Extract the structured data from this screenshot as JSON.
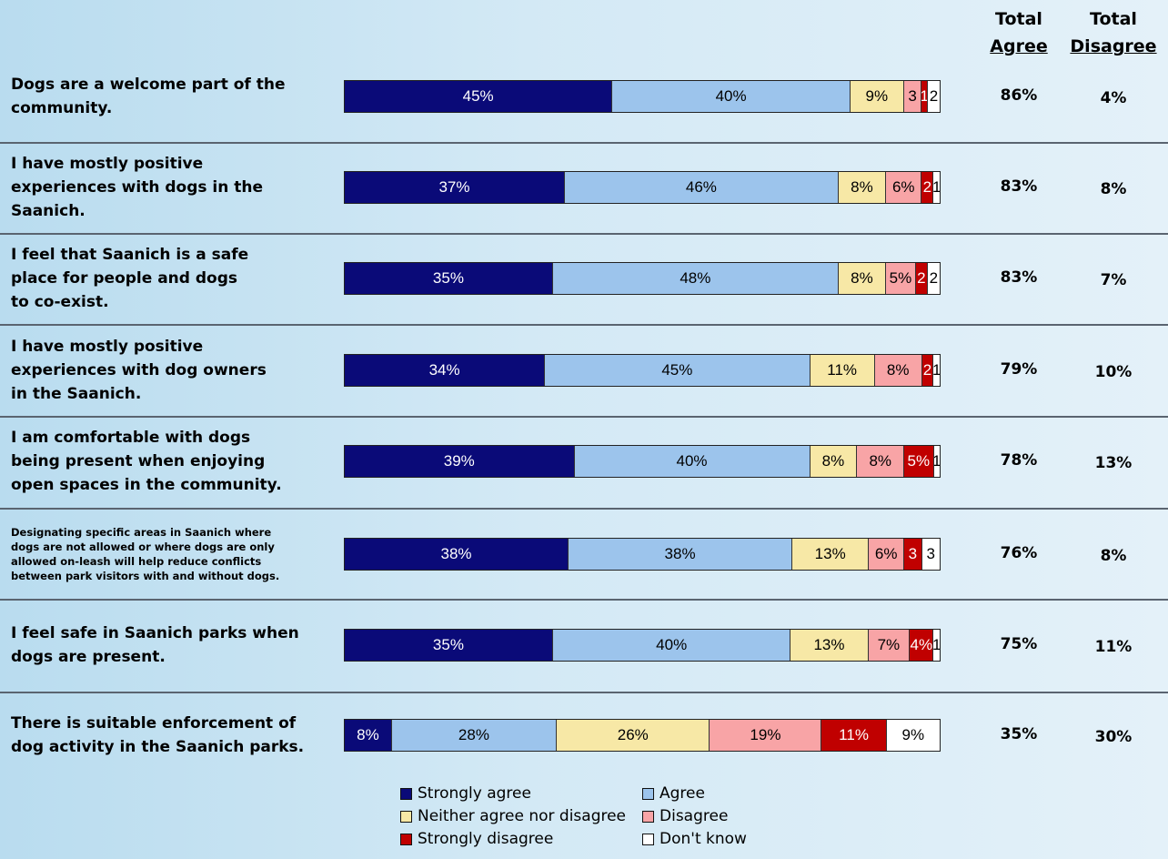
{
  "headers": {
    "total_agree": [
      "Total",
      "Agree"
    ],
    "total_disagree": [
      "Total",
      "Disagree"
    ]
  },
  "legend": [
    {
      "label": "Strongly agree",
      "color": "#0a0a78"
    },
    {
      "label": "Agree",
      "color": "#9cc4ec"
    },
    {
      "label": "Neither agree nor disagree",
      "color": "#f7e8a6"
    },
    {
      "label": "Disagree",
      "color": "#f8a4a6"
    },
    {
      "label": "Strongly disagree",
      "color": "#c00000"
    },
    {
      "label": "Don't know",
      "color": "#ffffff"
    }
  ],
  "chart_data": {
    "type": "bar",
    "orientation": "horizontal",
    "stacked": true,
    "categories": [
      "Dogs are a welcome part of the\ncommunity.",
      "I have mostly positive\nexperiences with dogs in the\nSaanich.",
      "I feel that Saanich is a safe\n place for people and dogs\n to co-exist.",
      "I have mostly positive\nexperiences with dog owners\nin the Saanich.",
      "I am comfortable with dogs\n being present when enjoying\n open spaces in the community.",
      "Designating specific areas in Saanich where\ndogs are not allowed or where dogs are only\nallowed on-leash will help reduce conflicts\nbetween park visitors with and without dogs.",
      "I feel safe in Saanich parks when\ndogs are present.",
      "There is suitable enforcement of\ndog activity in the Saanich parks."
    ],
    "series": [
      {
        "name": "Strongly agree",
        "color": "#0a0a78",
        "text_color": "#ffffff",
        "values": [
          45,
          37,
          35,
          34,
          39,
          38,
          35,
          8
        ],
        "labels": [
          "45%",
          "37%",
          "35%",
          "34%",
          "39%",
          "38%",
          "35%",
          "8%"
        ]
      },
      {
        "name": "Agree",
        "color": "#9cc4ec",
        "text_color": "#000000",
        "values": [
          40,
          46,
          48,
          45,
          40,
          38,
          40,
          28
        ],
        "labels": [
          "40%",
          "46%",
          "48%",
          "45%",
          "40%",
          "38%",
          "40%",
          "28%"
        ]
      },
      {
        "name": "Neither agree nor disagree",
        "color": "#f7e8a6",
        "text_color": "#000000",
        "values": [
          9,
          8,
          8,
          11,
          8,
          13,
          13,
          26
        ],
        "labels": [
          "9%",
          "8%",
          "8%",
          "11%",
          "8%",
          "13%",
          "13%",
          "26%"
        ]
      },
      {
        "name": "Disagree",
        "color": "#f8a4a6",
        "text_color": "#000000",
        "values": [
          3,
          6,
          5,
          8,
          8,
          6,
          7,
          19
        ],
        "labels": [
          "3",
          "6%",
          "5%",
          "8%",
          "8%",
          "6%",
          "7%",
          "19%"
        ]
      },
      {
        "name": "Strongly disagree",
        "color": "#c00000",
        "text_color": "#ffffff",
        "values": [
          1,
          2,
          2,
          2,
          5,
          3,
          4,
          11
        ],
        "labels": [
          "1",
          "2",
          "2",
          "2",
          "5%",
          "3",
          "4%",
          "11%"
        ]
      },
      {
        "name": "Don't know",
        "color": "#ffffff",
        "text_color": "#000000",
        "values": [
          2,
          1,
          2,
          1,
          1,
          3,
          1,
          9
        ],
        "labels": [
          "2",
          "1",
          "2",
          "1",
          "1",
          "3",
          "1",
          "9%"
        ]
      }
    ],
    "total_agree": [
      "86%",
      "83%",
      "83%",
      "79%",
      "78%",
      "76%",
      "75%",
      "35%"
    ],
    "total_disagree": [
      "4%",
      "8%",
      "7%",
      "10%",
      "13%",
      "8%",
      "11%",
      "30%"
    ]
  }
}
